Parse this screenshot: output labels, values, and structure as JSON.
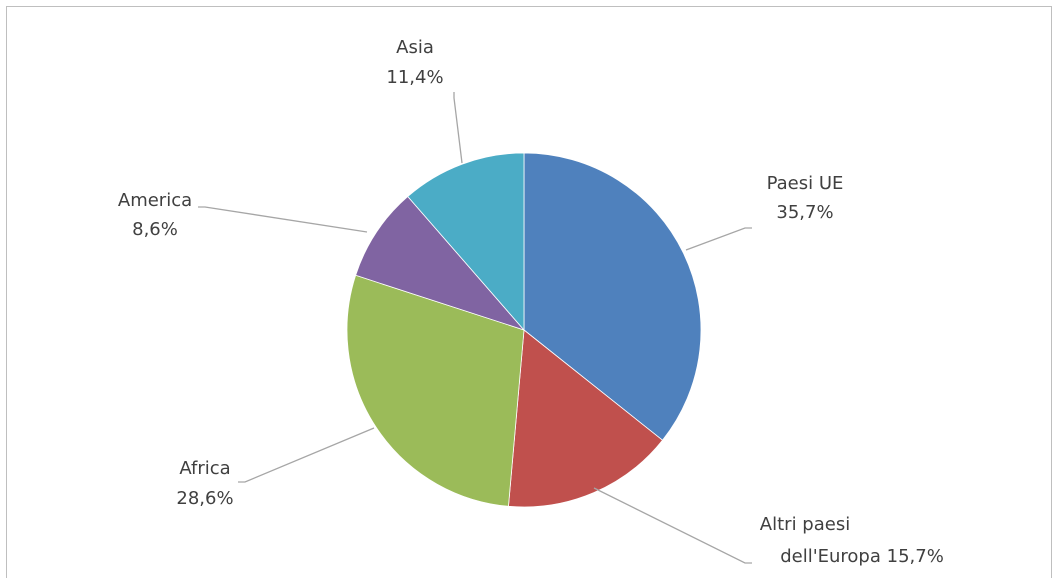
{
  "chart_data": {
    "type": "pie",
    "title": "",
    "slices": [
      {
        "name": "Paesi UE",
        "value": 35.7,
        "value_label": "35,7%",
        "color": "#4f81bd"
      },
      {
        "name": "Altri paesi dell'Europa",
        "value": 15.7,
        "value_label": "15,7%",
        "color": "#c0504d"
      },
      {
        "name": "Africa",
        "value": 28.6,
        "value_label": "28,6%",
        "color": "#9bbb59"
      },
      {
        "name": "America",
        "value": 8.6,
        "value_label": "8,6%",
        "color": "#8064a2"
      },
      {
        "name": "Asia",
        "value": 11.4,
        "value_label": "11,4%",
        "color": "#4bacc6"
      }
    ],
    "start": "12 o'clock",
    "direction": "clockwise",
    "legend": "none",
    "label_style": "outside with leader lines"
  }
}
